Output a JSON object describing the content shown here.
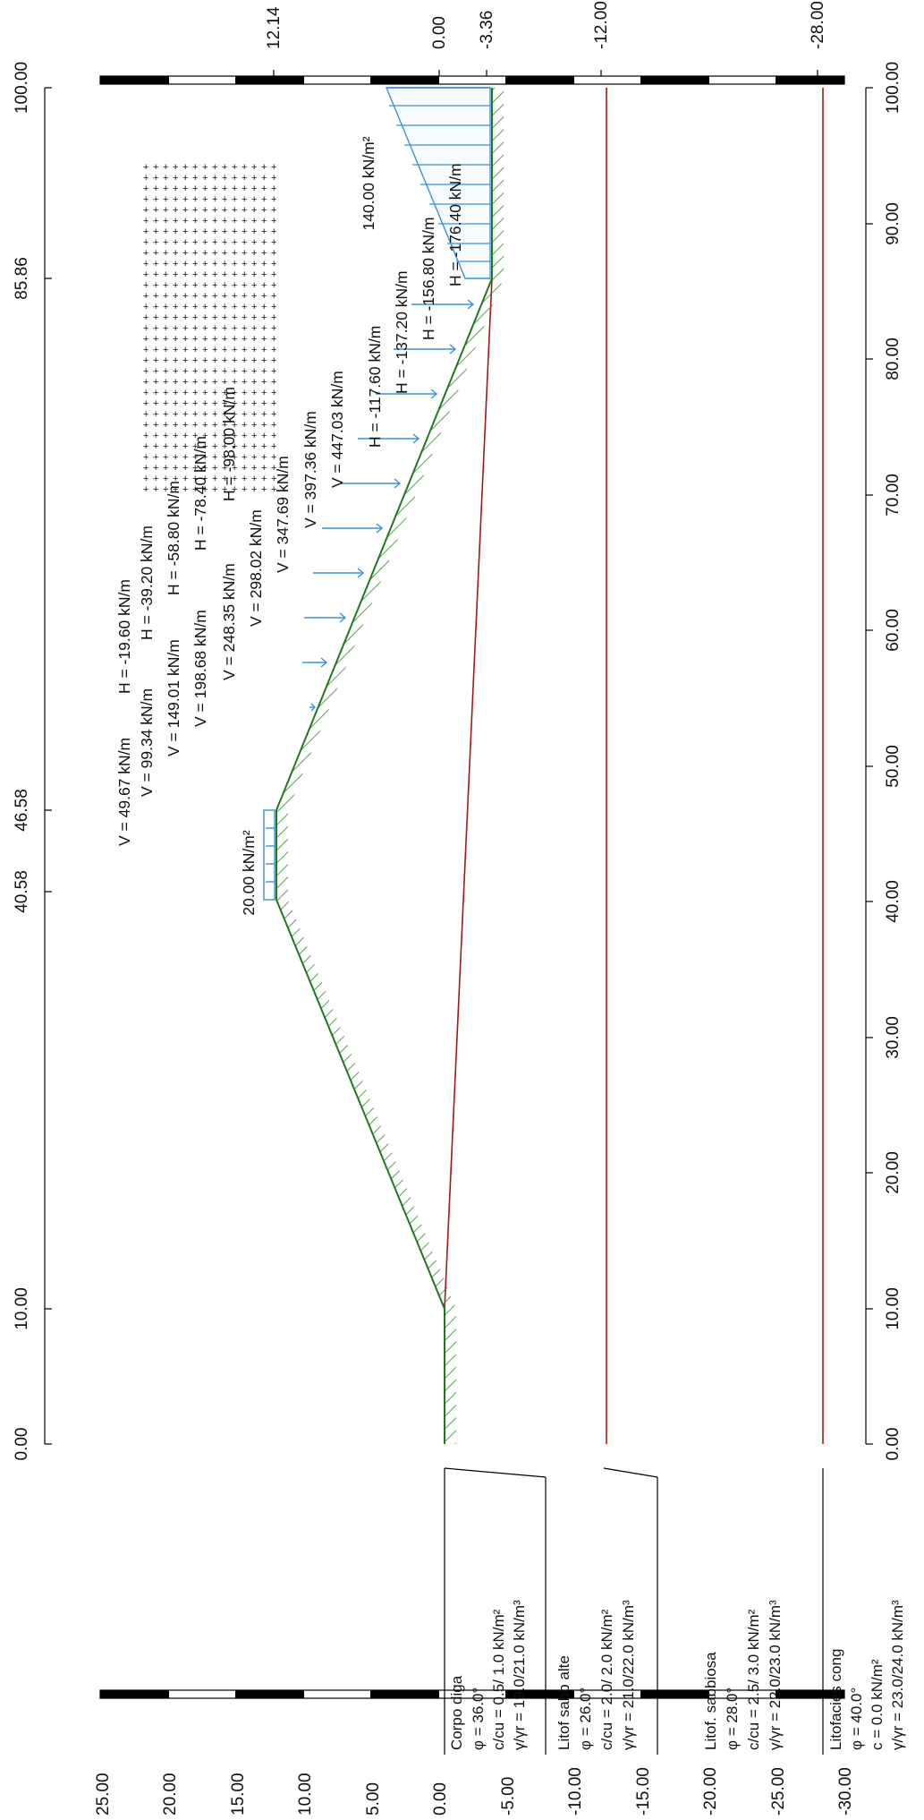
{
  "x_axis": {
    "ticks": [
      "0.00",
      "10.00",
      "20.00",
      "30.00",
      "40.00",
      "50.00",
      "60.00",
      "70.00",
      "80.00",
      "90.00",
      "100.00"
    ],
    "top_labels": [
      "0.00",
      "10.00",
      "40.58",
      "46.58",
      "85.86",
      "100.00"
    ]
  },
  "y_axis": {
    "ticks": [
      "25.00",
      "20.00",
      "15.00",
      "10.00",
      "5.00",
      "0.00",
      "-5.00",
      "-10.00",
      "-15.00",
      "-20.00",
      "-25.00",
      "-30.00"
    ],
    "right_labels": [
      "12.14",
      "0.00",
      "-3.36",
      "-12.00",
      "-28.00"
    ]
  },
  "loads": {
    "crest": "20.00 kN/m²",
    "upstream": "140.00 kN/m²",
    "vertical": [
      "V = 49.67 kN/m",
      "V = 99.34 kN/m",
      "V = 149.01 kN/m",
      "V = 198.68 kN/m",
      "V = 248.35 kN/m",
      "V = 298.02 kN/m",
      "V = 347.69 kN/m",
      "V = 397.36 kN/m",
      "V = 447.03 kN/m"
    ],
    "horizontal": [
      "H = -19.60 kN/m",
      "H = -39.20 kN/m",
      "H = -58.80 kN/m",
      "H = -78.40 kN/m",
      "H = -98.00 kN/m",
      "H = -117.60 kN/m",
      "H = -137.20 kN/m",
      "H = -156.80 kN/m",
      "H = -176.40 kN/m"
    ],
    "subscript": "q"
  },
  "soils": [
    {
      "name": "Corpo diga",
      "lines": [
        "φ    = 36.0°",
        "c/cu  =  0.5/ 1.0 kN/m²",
        "γ/γr = 19.0/21.0 kN/m³"
      ]
    },
    {
      "name": "Litof sabb alte",
      "lines": [
        "φ    = 26.0°",
        "c/cu  =  2.0/ 2.0 kN/m²",
        "γ/γr = 21.0/22.0 kN/m³"
      ]
    },
    {
      "name": "Litof. sabbiosa",
      "lines": [
        "φ    = 28.0°",
        "c/cu  =  2.5/ 3.0 kN/m²",
        "γ/γr = 22.0/23.0 kN/m³"
      ]
    },
    {
      "name": "Litofacies cong",
      "lines": [
        "φ    = 40.0°",
        "c     =  0.0 kN/m²",
        "γ/γr = 23.0/24.0 kN/m³"
      ]
    }
  ]
}
